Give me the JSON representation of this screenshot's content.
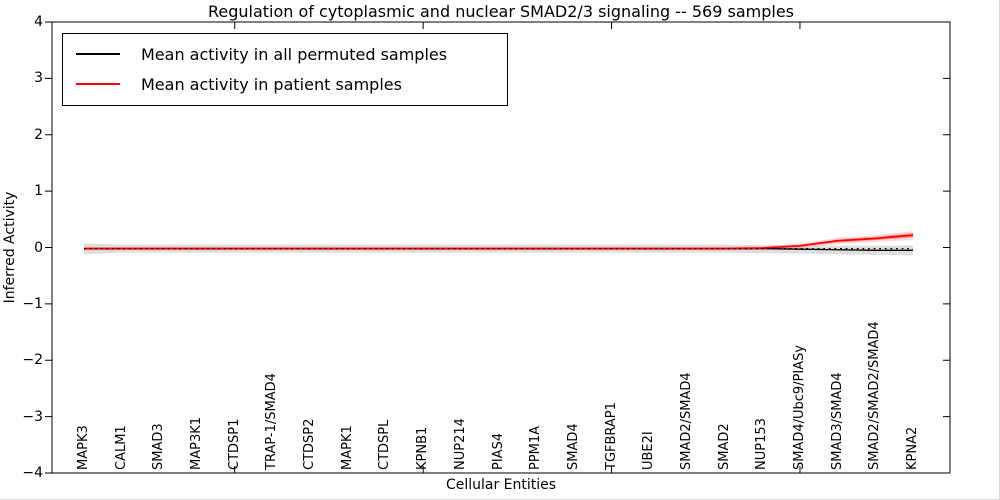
{
  "chart_data": {
    "type": "line",
    "title": "Regulation of cytoplasmic and nuclear SMAD2/3 signaling -- 569 samples",
    "xlabel": "Cellular Entities",
    "ylabel": "Inferred Activity",
    "ylim": [
      -4,
      4
    ],
    "yticks": [
      4,
      3,
      2,
      1,
      0,
      -1,
      -2,
      -3,
      -4
    ],
    "grid": false,
    "legend_position": "upper left",
    "x_tick_label_rotation": 90,
    "xtick_indices": [
      4,
      9,
      14,
      19
    ],
    "categories": [
      "MAPK3",
      "CALM1",
      "SMAD3",
      "MAP3K1",
      "CTDSP1",
      "TRAP-1/SMAD4",
      "CTDSP2",
      "MAPK1",
      "CTDSPL",
      "KPNB1",
      "NUP214",
      "PIAS4",
      "PPM1A",
      "SMAD4",
      "TGFBRAP1",
      "UBE2I",
      "SMAD2/SMAD4",
      "SMAD2",
      "NUP153",
      "SMAD4/Ubc9/PIASy",
      "SMAD3/SMAD4",
      "SMAD2/SMAD2/SMAD4",
      "KPNA2"
    ],
    "series": [
      {
        "name": "Mean activity in all permuted samples",
        "color": "#000000",
        "line_style": "solid",
        "values": [
          -0.02,
          -0.02,
          -0.02,
          -0.02,
          -0.02,
          -0.02,
          -0.02,
          -0.02,
          -0.02,
          -0.02,
          -0.02,
          -0.02,
          -0.02,
          -0.02,
          -0.02,
          -0.02,
          -0.02,
          -0.02,
          -0.02,
          -0.03,
          -0.04,
          -0.05,
          -0.05
        ],
        "band_upper": [
          0.07,
          0.05,
          0.05,
          0.05,
          0.05,
          0.05,
          0.05,
          0.05,
          0.05,
          0.05,
          0.05,
          0.05,
          0.05,
          0.05,
          0.05,
          0.05,
          0.05,
          0.05,
          0.04,
          0.03,
          0.03,
          0.03,
          0.04
        ],
        "band_lower": [
          -0.12,
          -0.09,
          -0.09,
          -0.09,
          -0.09,
          -0.09,
          -0.09,
          -0.09,
          -0.09,
          -0.09,
          -0.09,
          -0.09,
          -0.09,
          -0.09,
          -0.09,
          -0.09,
          -0.09,
          -0.09,
          -0.1,
          -0.11,
          -0.12,
          -0.13,
          -0.14
        ],
        "band_color": "rgba(0,0,0,0.13)"
      },
      {
        "name": "Mean activity in patient samples",
        "color": "#ff0000",
        "line_style": "solid",
        "values": [
          -0.02,
          -0.02,
          -0.02,
          -0.02,
          -0.02,
          -0.02,
          -0.02,
          -0.02,
          -0.02,
          -0.02,
          -0.02,
          -0.02,
          -0.02,
          -0.02,
          -0.02,
          -0.02,
          -0.02,
          -0.02,
          -0.01,
          0.03,
          0.12,
          0.16,
          0.22
        ],
        "band_outer_upper": [
          0.01,
          0.01,
          0.01,
          0.01,
          0.01,
          0.01,
          0.01,
          0.01,
          0.01,
          0.01,
          0.01,
          0.01,
          0.01,
          0.01,
          0.01,
          0.01,
          0.01,
          0.01,
          0.02,
          0.07,
          0.17,
          0.22,
          0.29
        ],
        "band_outer_lower": [
          -0.05,
          -0.05,
          -0.05,
          -0.05,
          -0.05,
          -0.05,
          -0.05,
          -0.05,
          -0.05,
          -0.05,
          -0.05,
          -0.05,
          -0.05,
          -0.05,
          -0.05,
          -0.05,
          -0.05,
          -0.05,
          -0.04,
          -0.01,
          0.06,
          0.1,
          0.13
        ],
        "band_outer_color": "rgba(255,0,0,0.15)",
        "band_inner_upper": [
          0.0,
          0.0,
          0.0,
          0.0,
          0.0,
          0.0,
          0.0,
          0.0,
          0.0,
          0.0,
          0.0,
          0.0,
          0.0,
          0.0,
          0.0,
          0.0,
          0.0,
          0.0,
          0.01,
          0.05,
          0.14,
          0.19,
          0.26
        ],
        "band_inner_lower": [
          -0.04,
          -0.04,
          -0.04,
          -0.04,
          -0.04,
          -0.04,
          -0.04,
          -0.04,
          -0.04,
          -0.04,
          -0.04,
          -0.04,
          -0.04,
          -0.04,
          -0.04,
          -0.04,
          -0.04,
          -0.04,
          -0.03,
          0.01,
          0.09,
          0.13,
          0.18
        ],
        "band_inner_color": "rgba(255,0,0,0.30)"
      }
    ],
    "reference_line": {
      "y": -0.02,
      "style": "dotted",
      "color": "#000000"
    }
  }
}
